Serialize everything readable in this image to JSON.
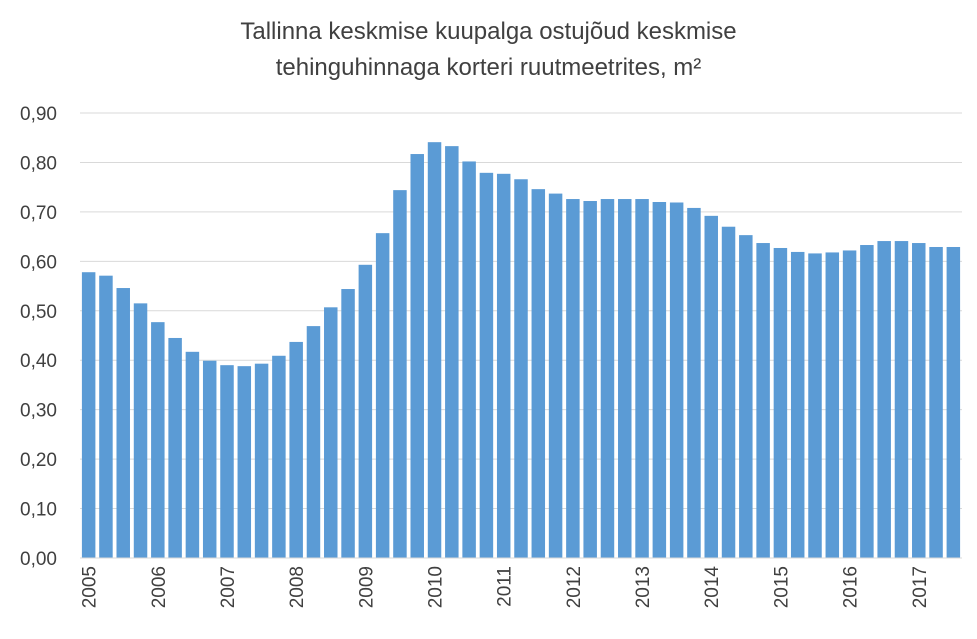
{
  "chart_data": {
    "type": "bar",
    "title_lines": [
      "Tallinna keskmise kuupalga ostujõud keskmise",
      "tehinguhinnaga korteri ruutmeetrites, m²"
    ],
    "xlabel": "",
    "ylabel": "",
    "x_tick_labels": [
      "2005",
      "2006",
      "2007",
      "2008",
      "2009",
      "2010",
      "2011",
      "2012",
      "2013",
      "2014",
      "2015",
      "2016",
      "2017"
    ],
    "y_tick_labels": [
      "0,00",
      "0,10",
      "0,20",
      "0,30",
      "0,40",
      "0,50",
      "0,60",
      "0,70",
      "0,80",
      "0,90"
    ],
    "ylim": [
      0,
      0.9
    ],
    "grid": true,
    "legend": "none",
    "bar_color": "#5B9BD5",
    "grid_color": "#D9D9D9",
    "series": [
      {
        "values": [
          0.578,
          0.571,
          0.546,
          0.515,
          0.477,
          0.445,
          0.417,
          0.399,
          0.39,
          0.388,
          0.393,
          0.409,
          0.437,
          0.469,
          0.507,
          0.544,
          0.593,
          0.657,
          0.744,
          0.817,
          0.841,
          0.833,
          0.802,
          0.779,
          0.777,
          0.766,
          0.746,
          0.737,
          0.726,
          0.722,
          0.726,
          0.726,
          0.726,
          0.72,
          0.719,
          0.708,
          0.692,
          0.67,
          0.653,
          0.637,
          0.627,
          0.619,
          0.616,
          0.618,
          0.622,
          0.633,
          0.641,
          0.641,
          0.637,
          0.629,
          0.629
        ]
      }
    ]
  }
}
